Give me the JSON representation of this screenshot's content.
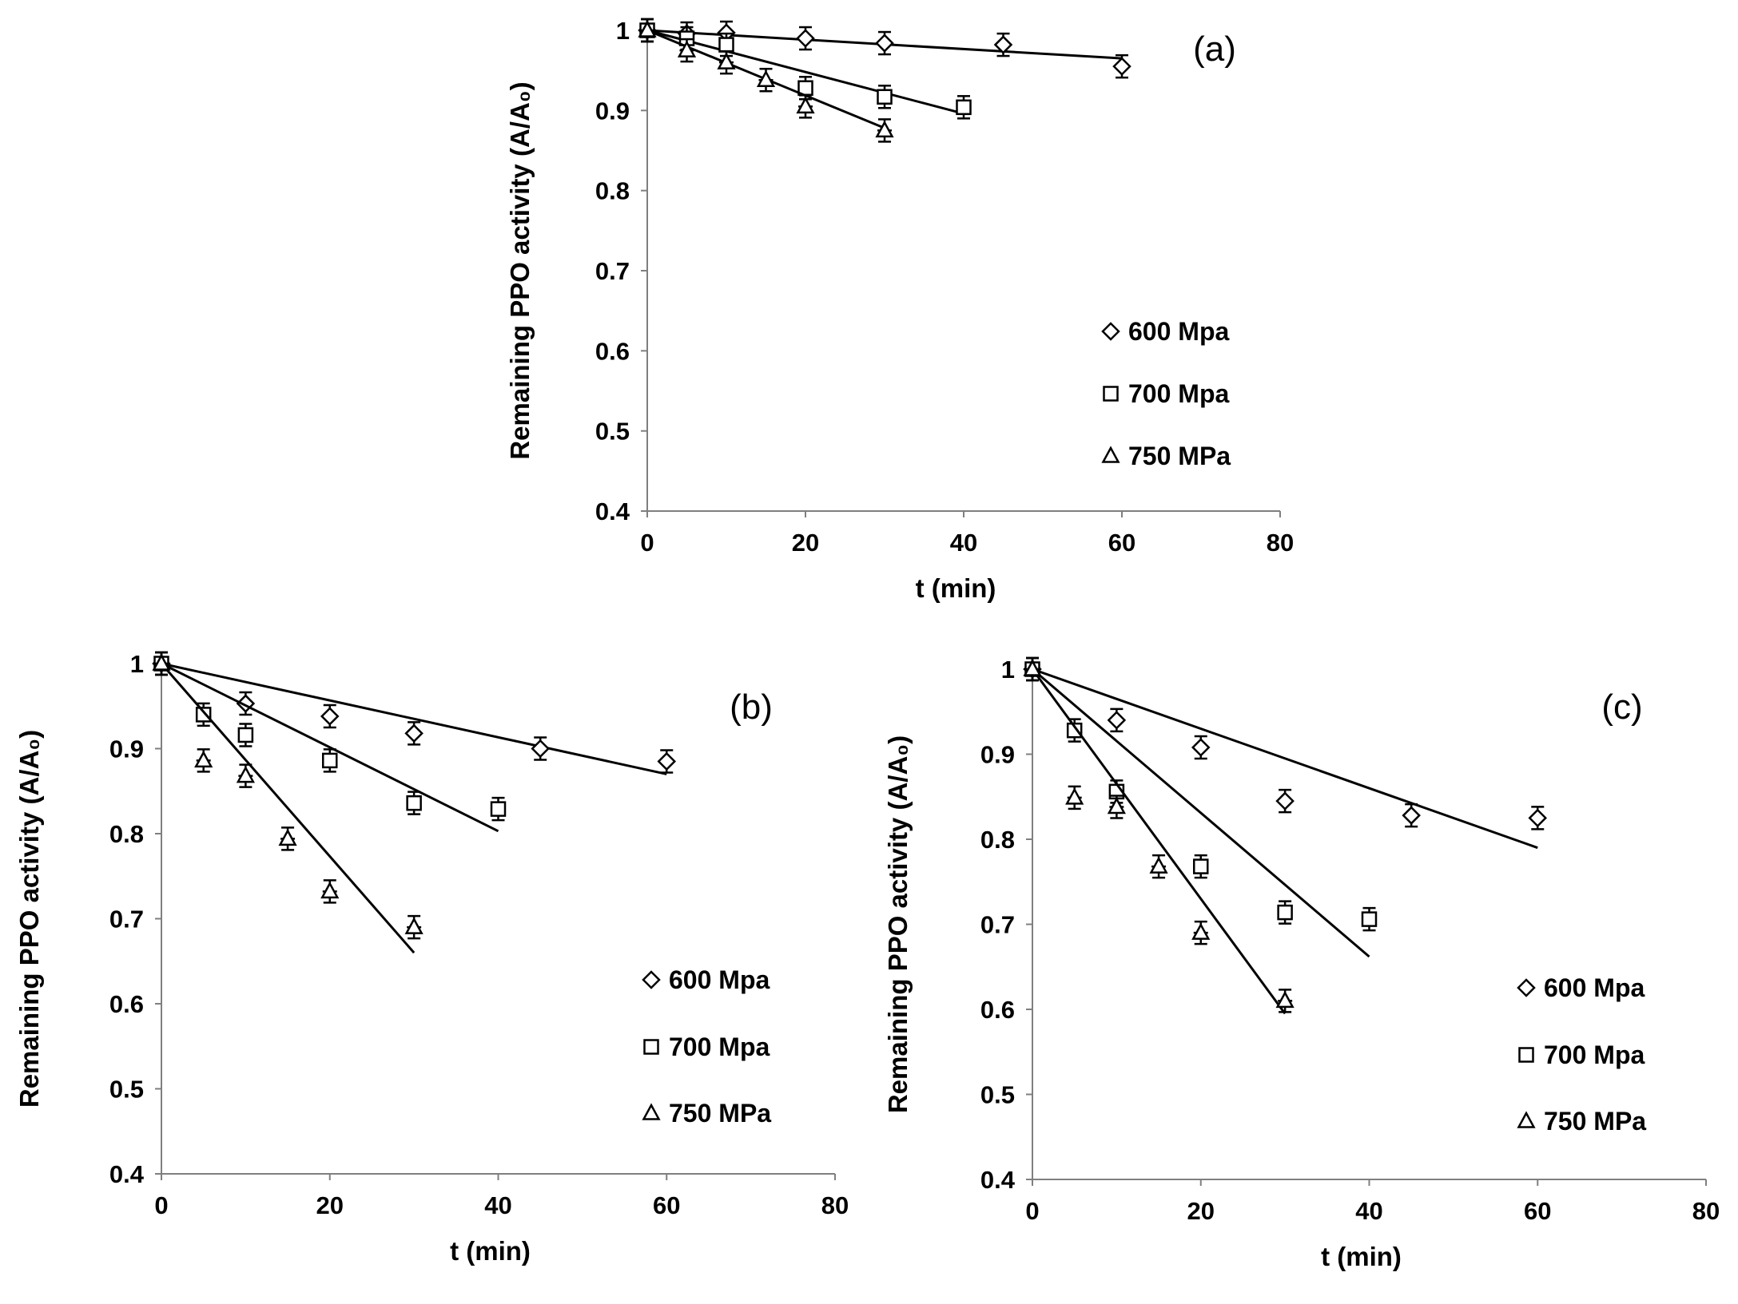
{
  "chart_data": [
    {
      "panel": "(a)",
      "type": "scatter",
      "xlabel": "t (min)",
      "ylabel": "Remaining PPO activity (A/A₀)",
      "xlim": [
        0,
        80
      ],
      "ylim": [
        0.4,
        1.0
      ],
      "xticks": [
        "0",
        "20",
        "40",
        "60",
        "80"
      ],
      "yticks": [
        "0.4",
        "0.5",
        "0.6",
        "0.7",
        "0.8",
        "0.9",
        "1"
      ],
      "legend": [
        "600 Mpa",
        "700 Mpa",
        "750 MPa"
      ],
      "series": [
        {
          "name": "600 Mpa",
          "marker": "diamond",
          "x": [
            0,
            5,
            10,
            20,
            30,
            45,
            60
          ],
          "y": [
            1.0,
            0.996,
            0.997,
            0.99,
            0.984,
            0.982,
            0.955
          ],
          "fit_end": [
            60,
            0.965
          ]
        },
        {
          "name": "700 Mpa",
          "marker": "square",
          "x": [
            0,
            5,
            10,
            20,
            30,
            40
          ],
          "y": [
            1.0,
            0.99,
            0.982,
            0.928,
            0.917,
            0.904
          ],
          "fit_end": [
            40,
            0.896
          ]
        },
        {
          "name": "750 MPa",
          "marker": "triangle",
          "x": [
            0,
            5,
            10,
            15,
            20,
            30
          ],
          "y": [
            1.0,
            0.975,
            0.96,
            0.938,
            0.905,
            0.875
          ],
          "fit_end": [
            30,
            0.878
          ]
        }
      ]
    },
    {
      "panel": "(b)",
      "type": "scatter",
      "xlabel": "t (min)",
      "ylabel": "Remaining PPO activity (A/A₀)",
      "xlim": [
        0,
        80
      ],
      "ylim": [
        0.4,
        1.0
      ],
      "xticks": [
        "0",
        "20",
        "40",
        "60",
        "80"
      ],
      "yticks": [
        "0.4",
        "0.5",
        "0.6",
        "0.7",
        "0.8",
        "0.9",
        "1"
      ],
      "legend": [
        "600 Mpa",
        "700 Mpa",
        "750 MPa"
      ],
      "series": [
        {
          "name": "600 Mpa",
          "marker": "diamond",
          "x": [
            0,
            10,
            20,
            30,
            45,
            60
          ],
          "y": [
            1.0,
            0.953,
            0.938,
            0.918,
            0.9,
            0.885
          ],
          "fit_end": [
            60,
            0.87
          ]
        },
        {
          "name": "700 Mpa",
          "marker": "square",
          "x": [
            0,
            5,
            10,
            20,
            30,
            40
          ],
          "y": [
            1.0,
            0.94,
            0.916,
            0.886,
            0.836,
            0.829
          ],
          "fit_end": [
            40,
            0.803
          ]
        },
        {
          "name": "750 MPa",
          "marker": "triangle",
          "x": [
            0,
            5,
            10,
            15,
            20,
            30
          ],
          "y": [
            1.0,
            0.886,
            0.868,
            0.794,
            0.732,
            0.69
          ],
          "fit_end": [
            30,
            0.66
          ]
        }
      ]
    },
    {
      "panel": "(c)",
      "type": "scatter",
      "xlabel": "t (min)",
      "ylabel": "Remaining PPO activity (A/A₀)",
      "xlim": [
        0,
        80
      ],
      "ylim": [
        0.4,
        1.0
      ],
      "xticks": [
        "0",
        "20",
        "40",
        "60",
        "80"
      ],
      "yticks": [
        "0.4",
        "0.5",
        "0.6",
        "0.7",
        "0.8",
        "0.9",
        "1"
      ],
      "legend": [
        "600 Mpa",
        "700 Mpa",
        "750 MPa"
      ],
      "series": [
        {
          "name": "600 Mpa",
          "marker": "diamond",
          "x": [
            0,
            10,
            20,
            30,
            45,
            60
          ],
          "y": [
            1.0,
            0.94,
            0.908,
            0.845,
            0.828,
            0.825
          ],
          "fit_end": [
            60,
            0.79
          ]
        },
        {
          "name": "700 Mpa",
          "marker": "square",
          "x": [
            0,
            5,
            10,
            20,
            30,
            40
          ],
          "y": [
            1.0,
            0.928,
            0.856,
            0.768,
            0.714,
            0.706
          ],
          "fit_end": [
            40,
            0.662
          ]
        },
        {
          "name": "750 MPa",
          "marker": "triangle",
          "x": [
            0,
            5,
            10,
            15,
            20,
            30
          ],
          "y": [
            1.0,
            0.849,
            0.838,
            0.768,
            0.69,
            0.61
          ],
          "fit_end": [
            30,
            0.595
          ]
        }
      ]
    }
  ]
}
